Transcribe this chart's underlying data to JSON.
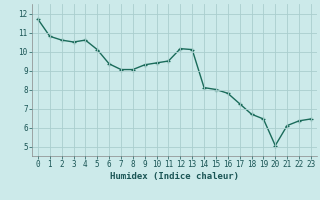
{
  "x": [
    0,
    1,
    2,
    3,
    4,
    5,
    6,
    7,
    8,
    9,
    10,
    11,
    12,
    13,
    14,
    15,
    16,
    17,
    18,
    19,
    20,
    21,
    22,
    23
  ],
  "y": [
    11.7,
    10.8,
    10.6,
    10.5,
    10.6,
    10.1,
    9.35,
    9.05,
    9.05,
    9.3,
    9.4,
    9.5,
    10.15,
    10.1,
    8.1,
    8.0,
    7.8,
    7.25,
    6.7,
    6.45,
    5.05,
    6.1,
    6.35,
    6.45
  ],
  "xlim": [
    -0.5,
    23.5
  ],
  "ylim": [
    4.5,
    12.5
  ],
  "yticks": [
    5,
    6,
    7,
    8,
    9,
    10,
    11,
    12
  ],
  "xticks": [
    0,
    1,
    2,
    3,
    4,
    5,
    6,
    7,
    8,
    9,
    10,
    11,
    12,
    13,
    14,
    15,
    16,
    17,
    18,
    19,
    20,
    21,
    22,
    23
  ],
  "xlabel": "Humidex (Indice chaleur)",
  "line_color": "#1a6b5a",
  "marker": "+",
  "bg_color": "#cceaea",
  "grid_color": "#aacece",
  "tick_fontsize": 5.5,
  "label_fontsize": 6.5,
  "linewidth": 1.0,
  "markersize": 3.5,
  "markeredgewidth": 0.9
}
